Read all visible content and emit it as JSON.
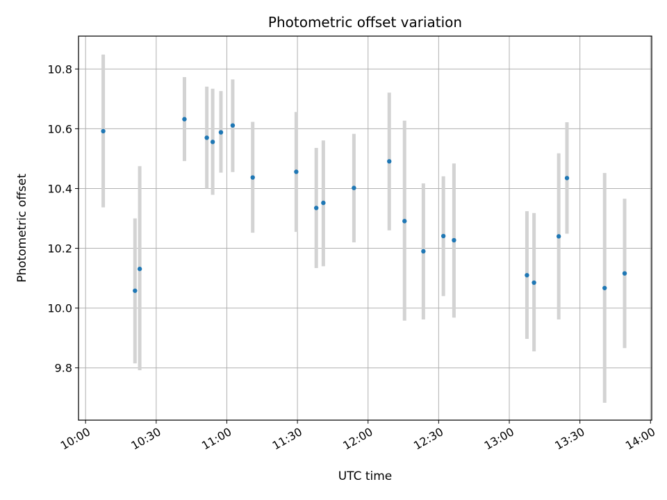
{
  "chart_data": {
    "type": "scatter",
    "title": "Photometric offset variation",
    "xlabel": "UTC time",
    "ylabel": "Photometric offset",
    "xlim": [
      "09:57",
      "14:00.5"
    ],
    "ylim": [
      9.625,
      10.91
    ],
    "grid": true,
    "x_ticks": [
      "10:00",
      "10:30",
      "11:00",
      "11:30",
      "12:00",
      "12:30",
      "13:00",
      "13:30",
      "14:00"
    ],
    "y_ticks": [
      "9.8",
      "10.0",
      "10.2",
      "10.4",
      "10.6",
      "10.8"
    ],
    "colors": {
      "marker": "#1f77b4",
      "errorbar": "#d3d3d3",
      "grid": "#b0b0b0"
    },
    "series": [
      {
        "points": [
          {
            "x": "10:07.5",
            "y": 10.592,
            "lo": 10.337,
            "hi": 10.848
          },
          {
            "x": "10:21",
            "y": 10.058,
            "lo": 9.815,
            "hi": 10.3
          },
          {
            "x": "10:23",
            "y": 10.131,
            "lo": 9.792,
            "hi": 10.475
          },
          {
            "x": "10:42",
            "y": 10.632,
            "lo": 10.492,
            "hi": 10.773
          },
          {
            "x": "10:51.5",
            "y": 10.57,
            "lo": 10.4,
            "hi": 10.741
          },
          {
            "x": "10:54",
            "y": 10.556,
            "lo": 10.379,
            "hi": 10.734
          },
          {
            "x": "10:57.5",
            "y": 10.588,
            "lo": 10.453,
            "hi": 10.726
          },
          {
            "x": "11:02.5",
            "y": 10.611,
            "lo": 10.455,
            "hi": 10.765
          },
          {
            "x": "11:11",
            "y": 10.437,
            "lo": 10.252,
            "hi": 10.623
          },
          {
            "x": "11:29.5",
            "y": 10.456,
            "lo": 10.255,
            "hi": 10.656
          },
          {
            "x": "11:38",
            "y": 10.335,
            "lo": 10.134,
            "hi": 10.536
          },
          {
            "x": "11:41",
            "y": 10.352,
            "lo": 10.14,
            "hi": 10.561
          },
          {
            "x": "11:54",
            "y": 10.402,
            "lo": 10.22,
            "hi": 10.583
          },
          {
            "x": "12:09",
            "y": 10.491,
            "lo": 10.26,
            "hi": 10.721
          },
          {
            "x": "12:15.5",
            "y": 10.291,
            "lo": 9.958,
            "hi": 10.627
          },
          {
            "x": "12:23.5",
            "y": 10.19,
            "lo": 9.962,
            "hi": 10.417
          },
          {
            "x": "12:32",
            "y": 10.241,
            "lo": 10.04,
            "hi": 10.441
          },
          {
            "x": "12:36.5",
            "y": 10.227,
            "lo": 9.968,
            "hi": 10.484
          },
          {
            "x": "13:07.5",
            "y": 10.11,
            "lo": 9.897,
            "hi": 10.324
          },
          {
            "x": "13:10.5",
            "y": 10.085,
            "lo": 9.855,
            "hi": 10.318
          },
          {
            "x": "13:21",
            "y": 10.24,
            "lo": 9.962,
            "hi": 10.518
          },
          {
            "x": "13:24.5",
            "y": 10.435,
            "lo": 10.249,
            "hi": 10.622
          },
          {
            "x": "13:40.5",
            "y": 10.067,
            "lo": 9.683,
            "hi": 10.452
          },
          {
            "x": "13:49",
            "y": 10.116,
            "lo": 9.866,
            "hi": 10.366
          }
        ]
      }
    ]
  }
}
